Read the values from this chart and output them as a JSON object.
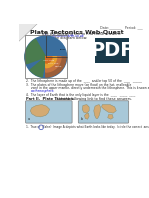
{
  "bg_color": "#ffffff",
  "title": "Plate Tectonics Web-Quest",
  "header_text": "Date:_______   Period: ___",
  "subtitle1": "Use the following link to find these answers:",
  "subtitle2": "online.dynamicearth.co.uk",
  "subtitle3": "1.   In the diagram below:",
  "q2": "2.  The lithosphere is made up of the  ____  and/or top 50 of the  ____   ______",
  "q3": "3.  The plates of the lithosphere move (on float) on the hot, malleable",
  "q3b": "     zone in the upper mantle, directly underneath the lithosphere. This is known as the",
  "q3c": "     asthenosphere.",
  "q4": "4.  The layer of Earth that is the only liquid layer is the  ____   _____  ____",
  "part2_title": "Part II.  Plate Tectonics.",
  "part2_sub": "Use the following link to find these answers.",
  "q1_part2": "1.  True or  (False)  Image A depicts what Earth looks like today.  (circle the correct  answer)",
  "globe_blue": "#3a6e9e",
  "globe_green": "#4a7c4e",
  "mantle_outer": "#9b5e3a",
  "mantle_inner": "#c47240",
  "outer_core": "#e8a030",
  "inner_core": "#d46820",
  "pdf_bg": "#1a3a4a",
  "pdf_text": "#ffffff",
  "map_water": "#a8c8d8",
  "map_land": "#d4aa72",
  "map_border": "#7a7a7a",
  "fold_gray": "#c8c8c8",
  "text_dark": "#222222",
  "text_blue": "#0000cc",
  "text_gray": "#444444",
  "circle_blue": "#5566bb"
}
